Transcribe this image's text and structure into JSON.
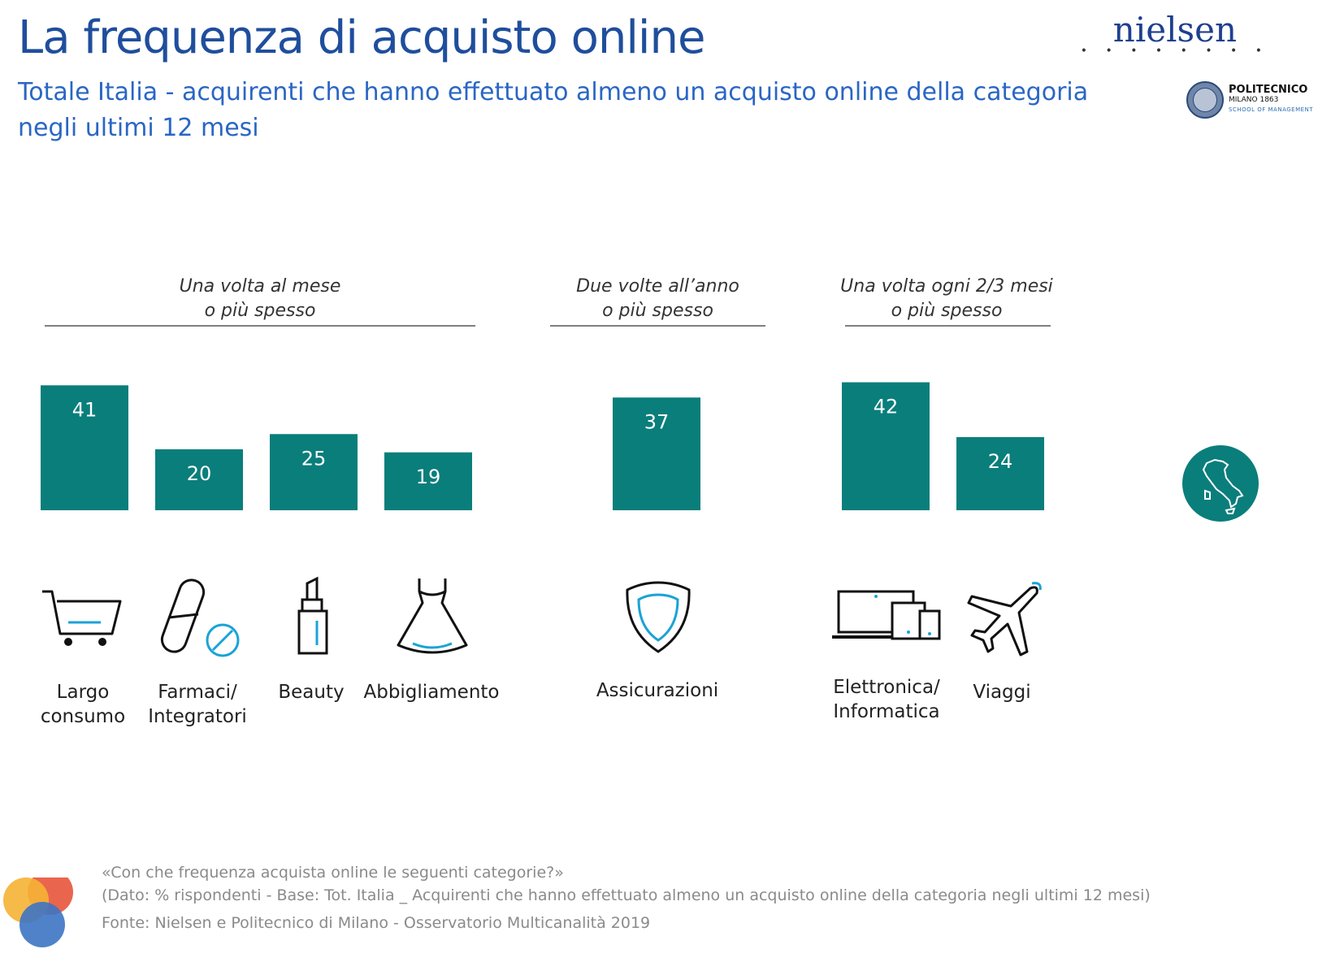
{
  "header": {
    "title": "La frequenza di acquisto online",
    "subtitle": "Totale Italia - acquirenti che hanno effettuato almeno un acquisto online della categoria negli ultimi 12 mesi"
  },
  "logos": {
    "nielsen": "nielsen",
    "nielsen_dots": "• • • • • • • •",
    "politecnico_line1": "POLITECNICO",
    "politecnico_line2": "MILANO 1863",
    "politecnico_line3": "SCHOOL OF MANAGEMENT"
  },
  "groups": [
    {
      "line1": "Una volta al mese",
      "line2": "o più spesso"
    },
    {
      "line1": "Due volte all’anno",
      "line2": "o più spesso"
    },
    {
      "line1": "Una volta ogni 2/3 mesi",
      "line2": "o più spesso"
    }
  ],
  "chart_data": {
    "type": "bar",
    "categories": [
      "Largo consumo",
      "Farmaci/ Integratori",
      "Beauty",
      "Abbigliamento",
      "Assicurazioni",
      "Elettronica/ Informatica",
      "Viaggi"
    ],
    "values": [
      41,
      20,
      25,
      19,
      37,
      42,
      24
    ],
    "groups": [
      "Una volta al mese o più spesso",
      "Una volta al mese o più spesso",
      "Una volta al mese o più spesso",
      "Una volta al mese o più spesso",
      "Due volte all’anno o più spesso",
      "Una volta ogni 2/3 mesi o più spesso",
      "Una volta ogni 2/3 mesi o più spesso"
    ],
    "unit": "%",
    "bar_color": "#0a7e7b",
    "label_color": "#ffffff",
    "grid": false
  },
  "categories": [
    {
      "line1": "Largo",
      "line2": "consumo",
      "icon": "shopping-cart-icon"
    },
    {
      "line1": "Farmaci/",
      "line2": "Integratori",
      "icon": "pill-icon"
    },
    {
      "line1": "Beauty",
      "line2": "",
      "icon": "lipstick-icon"
    },
    {
      "line1": "Abbigliamento",
      "line2": "",
      "icon": "dress-icon"
    },
    {
      "line1": "Assicurazioni",
      "line2": "",
      "icon": "shield-icon"
    },
    {
      "line1": "Elettronica/",
      "line2": "Informatica",
      "icon": "devices-icon"
    },
    {
      "line1": "Viaggi",
      "line2": "",
      "icon": "airplane-icon"
    }
  ],
  "footer": {
    "question": "«Con che frequenza acquista online le seguenti categorie?»",
    "base": "(Dato: % rispondenti - Base: Tot. Italia _ Acquirenti che hanno effettuato almeno un acquisto online della categoria negli ultimi 12 mesi)",
    "source": "Fonte: Nielsen e Politecnico di Milano - Osservatorio Multicanalità 2019"
  },
  "colors": {
    "accent": "#0a7e7b",
    "icon_accent": "#1aa3d6",
    "title": "#1f4e9c"
  }
}
